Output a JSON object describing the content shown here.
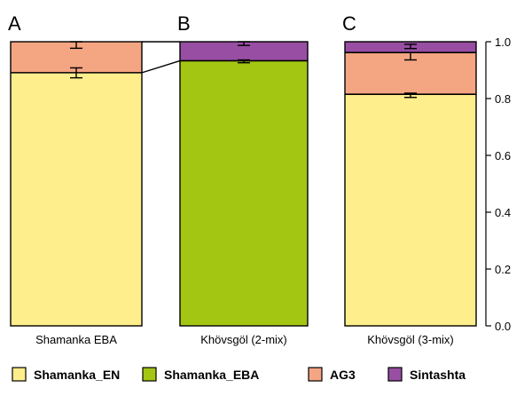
{
  "chart_data": {
    "type": "bar",
    "stacked": true,
    "ylim": [
      0,
      1
    ],
    "y_ticks": [
      "0.0",
      "0.2",
      "0.4",
      "0.6",
      "0.8",
      "1.0"
    ],
    "grid": false,
    "legend_placement": "bottom",
    "legend": [
      {
        "name": "Shamanka_EN",
        "color": "#FFEE8C"
      },
      {
        "name": "Shamanka_EBA",
        "color": "#A3C613"
      },
      {
        "name": "AG3",
        "color": "#F4A582"
      },
      {
        "name": "Sintashta",
        "color": "#984EA3"
      }
    ],
    "panels": [
      {
        "panel_label": "A",
        "category": "Shamanka EBA",
        "segments": [
          {
            "name": "Shamanka_EN",
            "color": "#FFEE8C",
            "value": 0.891
          },
          {
            "name": "AG3",
            "color": "#F4A582",
            "value": 0.109
          }
        ],
        "error_bars": [
          {
            "at": 0.891,
            "low": 0.873,
            "high": 0.908
          },
          {
            "at": 1.0,
            "low": 0.977,
            "high": 1.0
          }
        ]
      },
      {
        "panel_label": "B",
        "category": "Khövsgöl (2-mix)",
        "segments": [
          {
            "name": "Shamanka_EBA",
            "color": "#A3C613",
            "value": 0.933
          },
          {
            "name": "Sintashta",
            "color": "#984EA3",
            "value": 0.067
          }
        ],
        "error_bars": [
          {
            "at": 0.933,
            "low": 0.926,
            "high": 0.936
          },
          {
            "at": 1.0,
            "low": 0.987,
            "high": 1.0
          }
        ]
      },
      {
        "panel_label": "C",
        "category": "Khövsgöl (3-mix)",
        "segments": [
          {
            "name": "Shamanka_EN",
            "color": "#FFEE8C",
            "value": 0.815
          },
          {
            "name": "AG3",
            "color": "#F4A582",
            "value": 0.147
          },
          {
            "name": "Sintashta",
            "color": "#984EA3",
            "value": 0.038
          }
        ],
        "error_bars": [
          {
            "at": 0.815,
            "low": 0.804,
            "high": 0.819
          },
          {
            "at": 0.962,
            "low": 0.936,
            "high": 0.962
          },
          {
            "at": 1.0,
            "low": 0.976,
            "high": 0.991
          }
        ]
      }
    ]
  }
}
